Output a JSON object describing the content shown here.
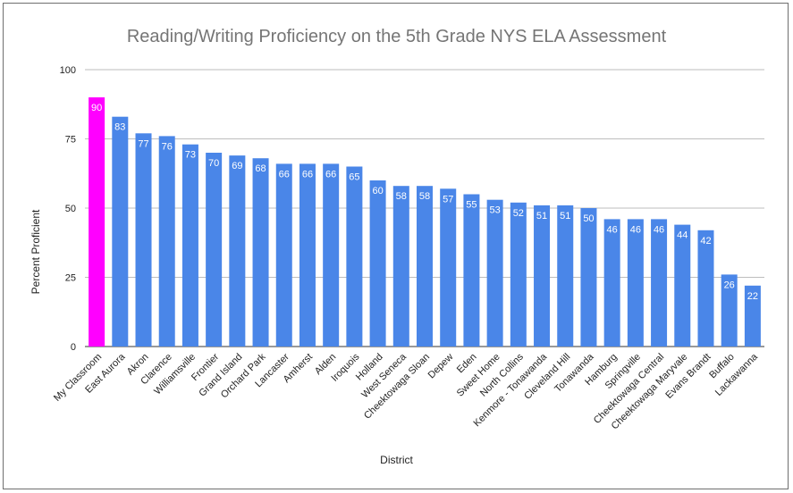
{
  "chart_data": {
    "type": "bar",
    "title": "Reading/Writing Proficiency on the 5th Grade NYS ELA Assessment",
    "xlabel": "District",
    "ylabel": "Percent Proficient",
    "ylim": [
      0,
      100
    ],
    "yticks": [
      0,
      25,
      50,
      75,
      100
    ],
    "grid": true,
    "colors": {
      "default": "#4a86e8",
      "highlight": "#ff00ff"
    },
    "highlight_index": 0,
    "categories": [
      "My Classroom",
      "East Aurora",
      "Akron",
      "Clarence",
      "Williamsville",
      "Frontier",
      "Grand Island",
      "Orchard Park",
      "Lancaster",
      "Amherst",
      "Alden",
      "Iroquois",
      "Holland",
      "West Seneca",
      "Cheektowaga Sloan",
      "Depew",
      "Eden",
      "Sweet Home",
      "North Collins",
      "Kenmore - Tonawanda",
      "Cleveland Hill",
      "Tonawanda",
      "Hamburg",
      "Springville",
      "Cheektowaga Central",
      "Cheektowaga Maryvale",
      "Evans Brandt",
      "Buffalo",
      "Lackawanna"
    ],
    "values": [
      90,
      83,
      77,
      76,
      73,
      70,
      69,
      68,
      66,
      66,
      66,
      65,
      60,
      58,
      58,
      57,
      55,
      53,
      52,
      51,
      51,
      50,
      46,
      46,
      46,
      44,
      42,
      26,
      22
    ]
  }
}
